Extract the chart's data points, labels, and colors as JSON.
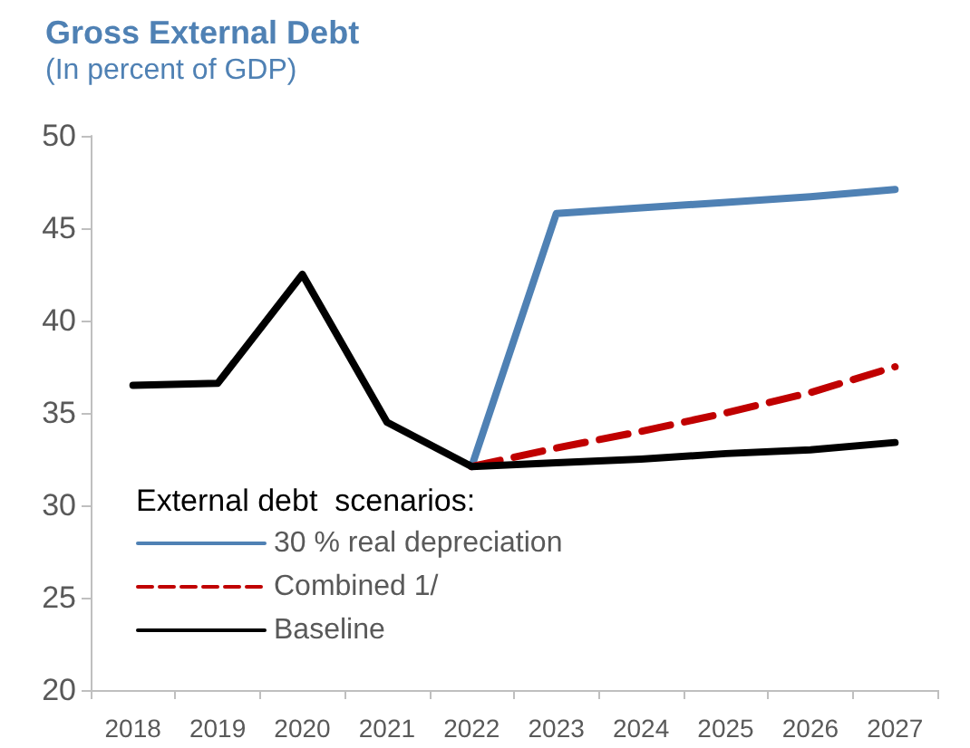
{
  "chart_data": {
    "type": "line",
    "title": "Gross External Debt",
    "subtitle": "(In percent of GDP)",
    "categories": [
      "2018",
      "2019",
      "2020",
      "2021",
      "2022",
      "2023",
      "2024",
      "2025",
      "2026",
      "2027"
    ],
    "series": [
      {
        "name": "30 % real depreciation",
        "color": "#4f81b4",
        "line_style": "solid",
        "values": [
          null,
          null,
          null,
          null,
          32.1,
          45.8,
          46.1,
          46.4,
          46.7,
          47.1
        ]
      },
      {
        "name": "Combined 1/",
        "color": "#c00000",
        "line_style": "dashed",
        "values": [
          null,
          null,
          null,
          null,
          32.1,
          33.1,
          34.0,
          35.0,
          36.1,
          37.5
        ]
      },
      {
        "name": "Baseline",
        "color": "#000000",
        "line_style": "solid",
        "values": [
          36.5,
          36.6,
          42.5,
          34.5,
          32.1,
          32.3,
          32.5,
          32.8,
          33.0,
          33.4
        ]
      }
    ],
    "legend_title": "External debt  scenarios:",
    "legend": "bottom left",
    "ylim": [
      20,
      50
    ],
    "yticks": [
      20,
      25,
      30,
      35,
      40,
      45,
      50
    ],
    "grid": false,
    "marker": "none"
  }
}
